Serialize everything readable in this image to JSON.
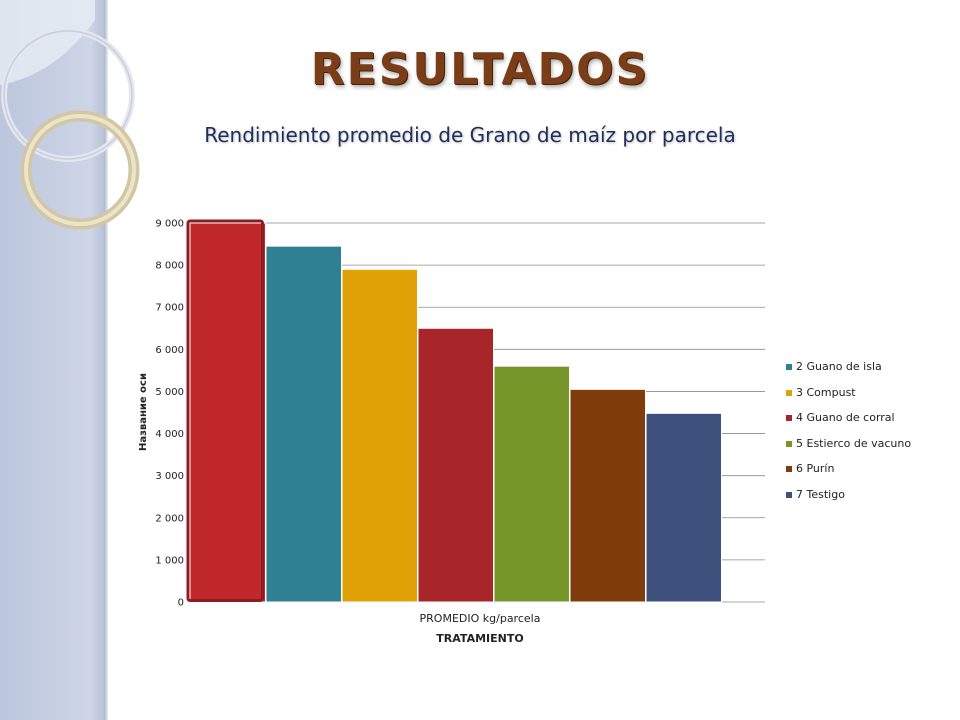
{
  "slide": {
    "title": "RESULTADOS",
    "subtitle": "Rendimiento promedio de Grano de maíz por parcela"
  },
  "colors": {
    "band": "#c9d1e4",
    "title": "#7a3d17",
    "subtitle": "#1f2d5a",
    "grid": "#8c8c8c"
  },
  "chart_data": {
    "type": "bar",
    "categories": [
      "PROMEDIO kg/parcela"
    ],
    "xlabel": "TRATAMIENTO",
    "ylabel": "Название оси",
    "ylim": [
      0,
      9000
    ],
    "yticks": [
      0,
      1000,
      2000,
      3000,
      4000,
      5000,
      6000,
      7000,
      8000,
      9000
    ],
    "ytick_labels": [
      "0",
      "1 000",
      "2 000",
      "3 000",
      "4 000",
      "5 000",
      "6 000",
      "7 000",
      "8 000",
      "9 000"
    ],
    "grid": true,
    "legend_position": "right",
    "series": [
      {
        "name": "",
        "values": [
          9000
        ],
        "color": "#c0282c",
        "highlighted": true
      },
      {
        "name": "2 Guano de isla",
        "values": [
          8450
        ],
        "color": "#2e8092"
      },
      {
        "name": "3 Compust",
        "values": [
          7900
        ],
        "color": "#e0a206"
      },
      {
        "name": "4 Guano de corral",
        "values": [
          6500
        ],
        "color": "#a8262a"
      },
      {
        "name": "5 Estierco de vacuno",
        "values": [
          5600
        ],
        "color": "#77962a"
      },
      {
        "name": "6 Purín",
        "values": [
          5050
        ],
        "color": "#803c0a"
      },
      {
        "name": "7 Testigo",
        "values": [
          4480
        ],
        "color": "#3e517d"
      }
    ]
  }
}
